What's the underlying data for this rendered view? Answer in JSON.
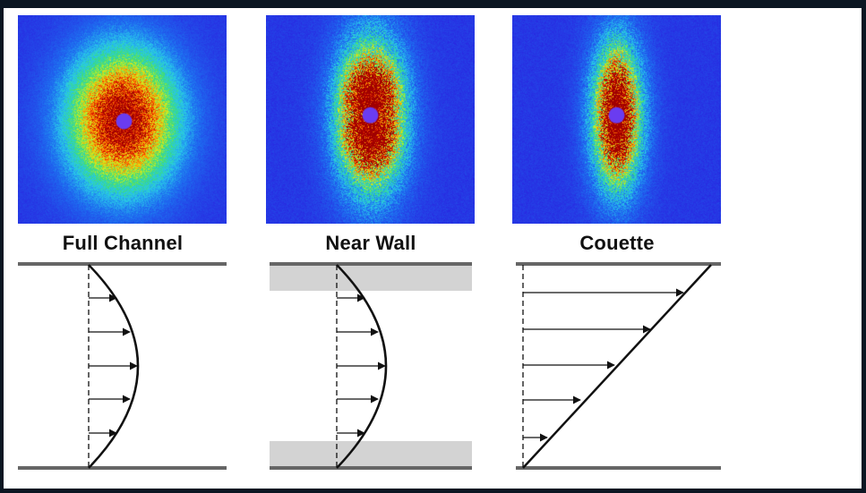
{
  "panels": [
    {
      "label": "Full Channel",
      "pattern": "isotropic",
      "profile": "parabolic",
      "wall_shading": false
    },
    {
      "label": "Near Wall",
      "pattern": "anisotropic-lobes",
      "profile": "parabolic",
      "wall_shading": true
    },
    {
      "label": "Couette",
      "pattern": "anisotropic-narrow",
      "profile": "linear",
      "wall_shading": false
    }
  ],
  "colors": {
    "frame": "#0b1622",
    "wall": "#666666",
    "shading": "#d3d3d3",
    "profile": "#111111",
    "heat_low": "#2828e6",
    "heat_high": "#b00000",
    "beamstop": "#6a3cf0"
  }
}
